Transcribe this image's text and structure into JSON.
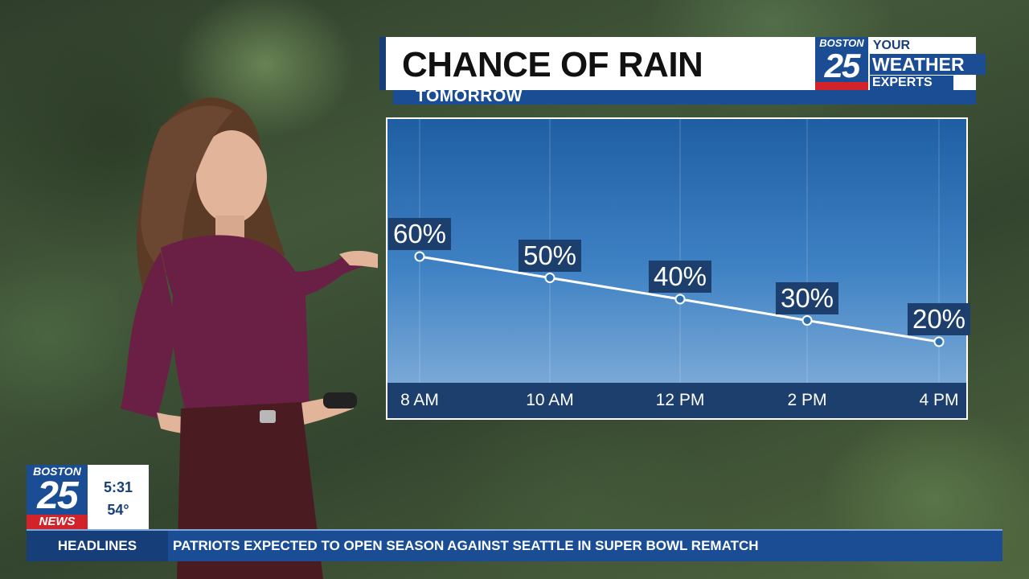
{
  "header": {
    "title": "CHANCE OF RAIN",
    "subtitle": "TOMORROW"
  },
  "logo": {
    "city": "BOSTON",
    "number": "25",
    "your": "YOUR",
    "weather": "WEATHER",
    "experts": "EXPERTS"
  },
  "chart_data": {
    "type": "line",
    "categories": [
      "8 AM",
      "10 AM",
      "12 PM",
      "2 PM",
      "4 PM"
    ],
    "values": [
      60,
      50,
      40,
      30,
      20
    ],
    "value_labels": [
      "60%",
      "50%",
      "40%",
      "30%",
      "20%"
    ],
    "unit": "%",
    "title": "CHANCE OF RAIN",
    "subtitle": "TOMORROW",
    "xlabel": "",
    "ylabel": "",
    "grid": "vertical",
    "line_color": "#ffffff"
  },
  "bug": {
    "city": "BOSTON",
    "number": "25",
    "brand": "NEWS",
    "time": "5:31",
    "temperature": "54°"
  },
  "ticker": {
    "label": "HEADLINES",
    "headline": "PATRIOTS EXPECTED TO OPEN SEASON AGAINST SEATTLE IN SUPER BOWL REMATCH"
  },
  "colors": {
    "brand_blue": "#1a4d94",
    "brand_dark_blue": "#163f7a",
    "brand_red": "#d2232a"
  }
}
